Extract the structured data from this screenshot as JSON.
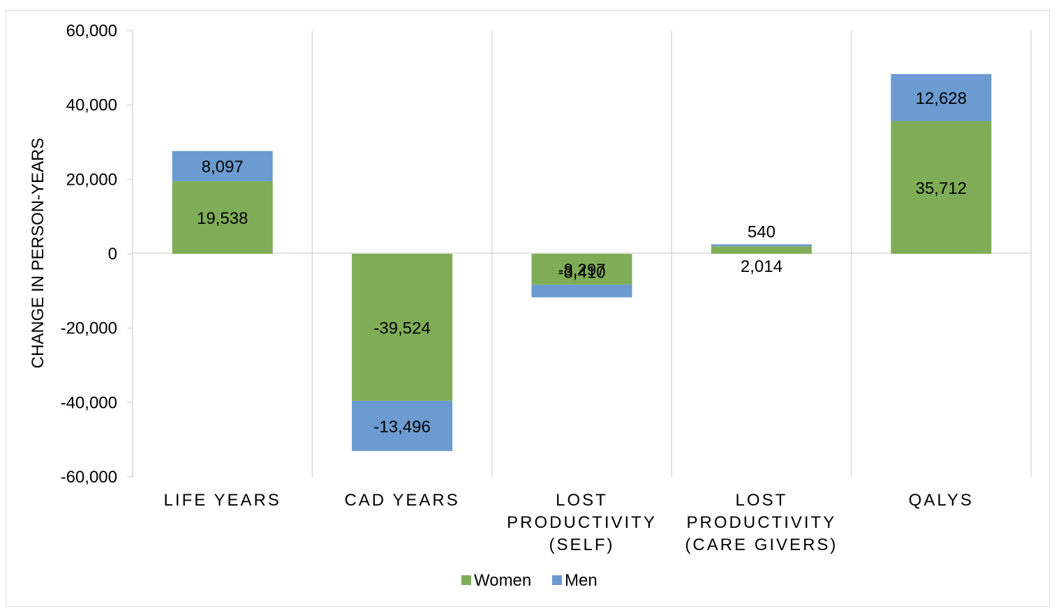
{
  "chart_data": {
    "type": "bar",
    "stacked": true,
    "categories": [
      [
        "LIFE YEARS"
      ],
      [
        "CAD YEARS"
      ],
      [
        "LOST",
        "PRODUCTIVITY",
        "(SELF)"
      ],
      [
        "LOST",
        "PRODUCTIVITY",
        "(CARE GIVERS)"
      ],
      [
        "QALYS"
      ]
    ],
    "series": [
      {
        "name": "Women",
        "color": "#7fad57",
        "values": [
          19538,
          -39524,
          -8297,
          2014,
          35712
        ],
        "labels": [
          "19,538",
          "-39,524",
          "-8,297",
          "2,014",
          "35,712"
        ]
      },
      {
        "name": "Men",
        "color": "#6b9bd0",
        "values": [
          8097,
          -13496,
          -3410,
          540,
          12628
        ],
        "labels": [
          "8,097",
          "-13,496",
          "-3,410",
          "540",
          "12,628"
        ]
      }
    ],
    "ylabel": "CHANGE IN PERSON-YEARS",
    "ylim": [
      -60000,
      60000
    ],
    "yticks": [
      60000,
      40000,
      20000,
      0,
      -20000,
      -40000,
      -60000
    ],
    "ytick_labels": [
      "60,000",
      "40,000",
      "20,000",
      "0",
      "-20,000",
      "-40,000",
      "-60,000"
    ],
    "grid": "vertical category separators",
    "legend": "bottom-center"
  }
}
